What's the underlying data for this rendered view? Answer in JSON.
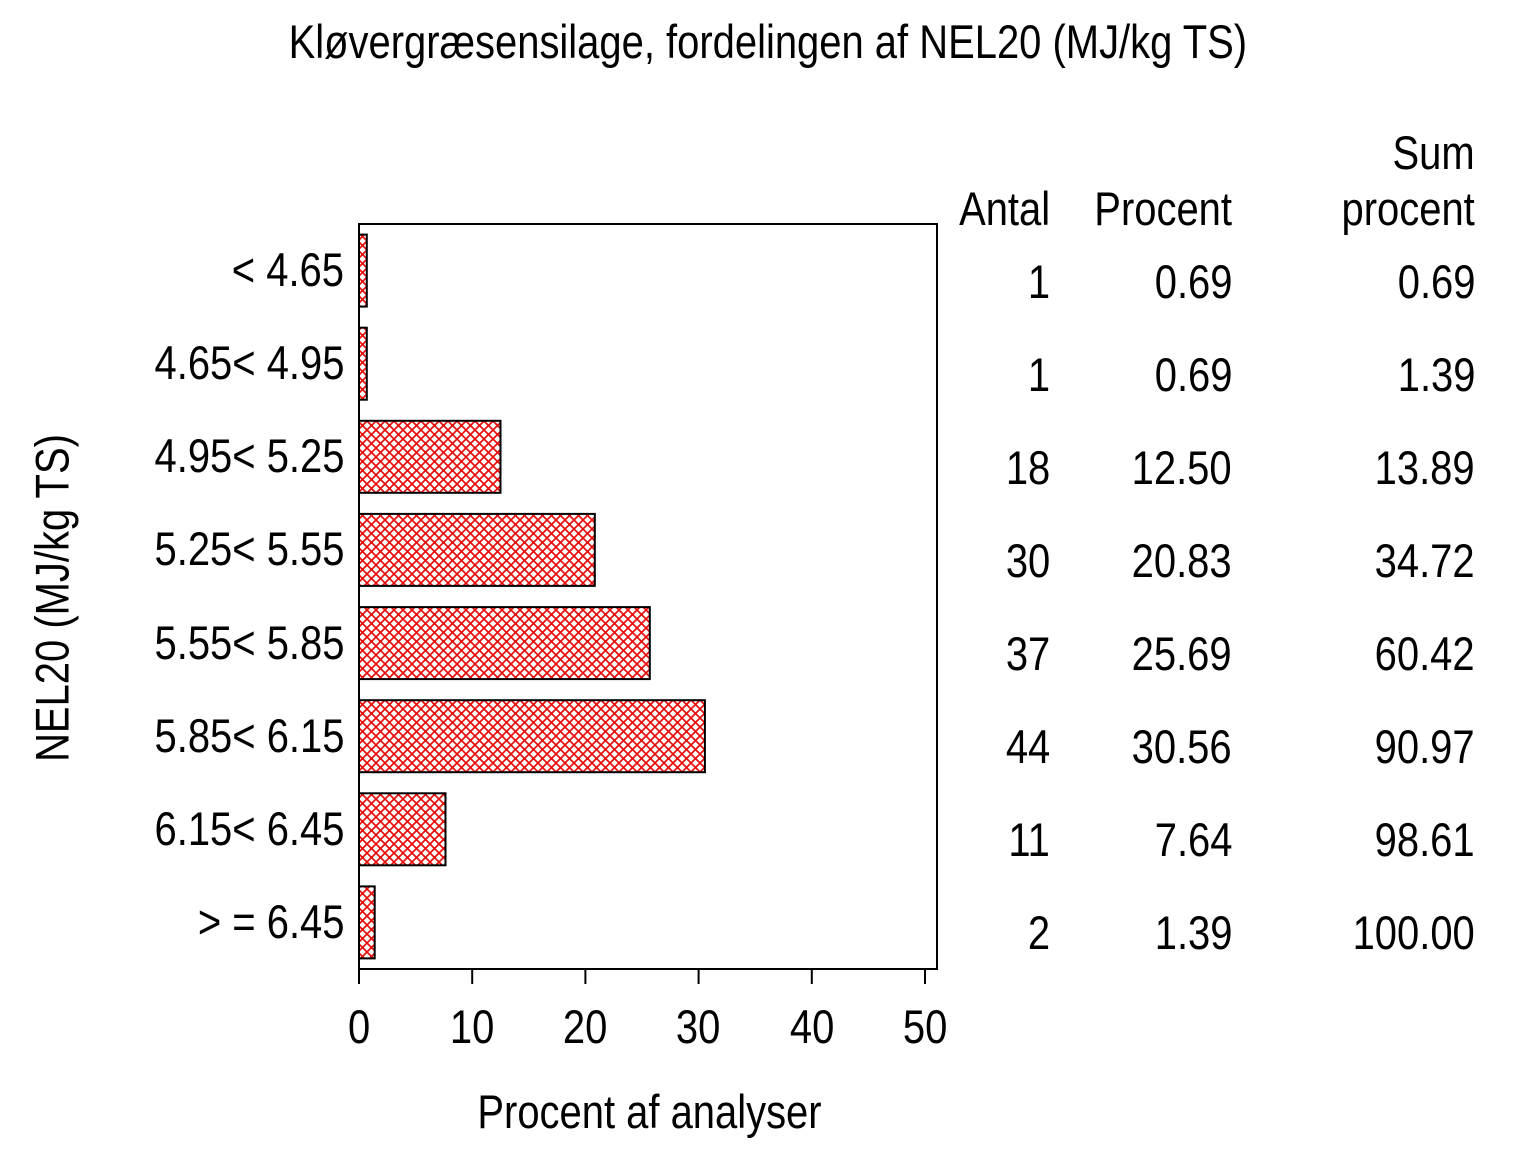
{
  "chart_data": {
    "type": "bar",
    "orientation": "horizontal",
    "title": "Kløvergræsensilage, fordelingen af NEL20 (MJ/kg TS)",
    "xlabel": "Procent af analyser",
    "ylabel": "NEL20 (MJ/kg TS)",
    "categories": [
      "< 4.65",
      "4.65< 4.95",
      "4.95< 5.25",
      "5.25< 5.55",
      "5.55< 5.85",
      "5.85< 6.15",
      "6.15< 6.45",
      "> = 6.45"
    ],
    "series": [
      {
        "name": "Procent",
        "values": [
          0.69,
          0.69,
          12.5,
          20.83,
          25.69,
          30.56,
          7.64,
          1.39
        ]
      },
      {
        "name": "Antal",
        "values": [
          1,
          1,
          18,
          30,
          37,
          44,
          11,
          2
        ]
      },
      {
        "name": "Sum procent",
        "values": [
          0.69,
          1.39,
          13.89,
          34.72,
          60.42,
          90.97,
          98.61,
          100.0
        ]
      }
    ],
    "xlim": [
      0,
      51
    ],
    "xticks": [
      0,
      10,
      20,
      30,
      40,
      50
    ],
    "grid": false,
    "legend_position": "none",
    "bar_fill_pattern": "diagonal-crosshatch",
    "bar_color": "#e8100c",
    "bar_border_color": "#000000",
    "frame_color": "#000000"
  },
  "table": {
    "col_headers": [
      "Antal",
      "Procent",
      "Sum procent"
    ],
    "sum_header_lines": [
      "Sum",
      "procent"
    ],
    "rows": [
      [
        "1",
        "0.69",
        "0.69"
      ],
      [
        "1",
        "0.69",
        "1.39"
      ],
      [
        "18",
        "12.50",
        "13.89"
      ],
      [
        "30",
        "20.83",
        "34.72"
      ],
      [
        "37",
        "25.69",
        "60.42"
      ],
      [
        "44",
        "30.56",
        "90.97"
      ],
      [
        "11",
        "7.64",
        "98.61"
      ],
      [
        "2",
        "1.39",
        "100.00"
      ]
    ]
  }
}
